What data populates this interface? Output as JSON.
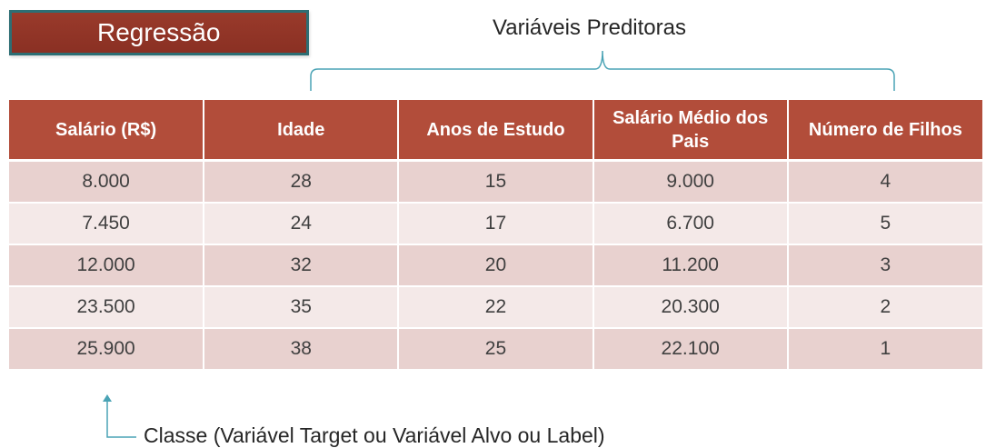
{
  "title": "Regressão",
  "predictors_label": "Variáveis Preditoras",
  "table": {
    "headers": [
      "Salário (R$)",
      "Idade",
      "Anos de Estudo",
      "Salário Médio dos Pais",
      "Número de Filhos"
    ],
    "rows": [
      [
        "8.000",
        "28",
        "15",
        "9.000",
        "4"
      ],
      [
        "7.450",
        "24",
        "17",
        "6.700",
        "5"
      ],
      [
        "12.000",
        "32",
        "20",
        "11.200",
        "3"
      ],
      [
        "23.500",
        "35",
        "22",
        "20.300",
        "2"
      ],
      [
        "25.900",
        "38",
        "25",
        "22.100",
        "1"
      ]
    ]
  },
  "class_label": "Classe (Variável Target ou Variável Alvo ou Label)",
  "colors": {
    "title_background": "#993a2b",
    "title_border": "#2d6e74",
    "header_background": "#b24d3a",
    "row_odd": "#e8d1cf",
    "row_even": "#f4e9e8",
    "annotation_line": "#4aa3b5"
  }
}
